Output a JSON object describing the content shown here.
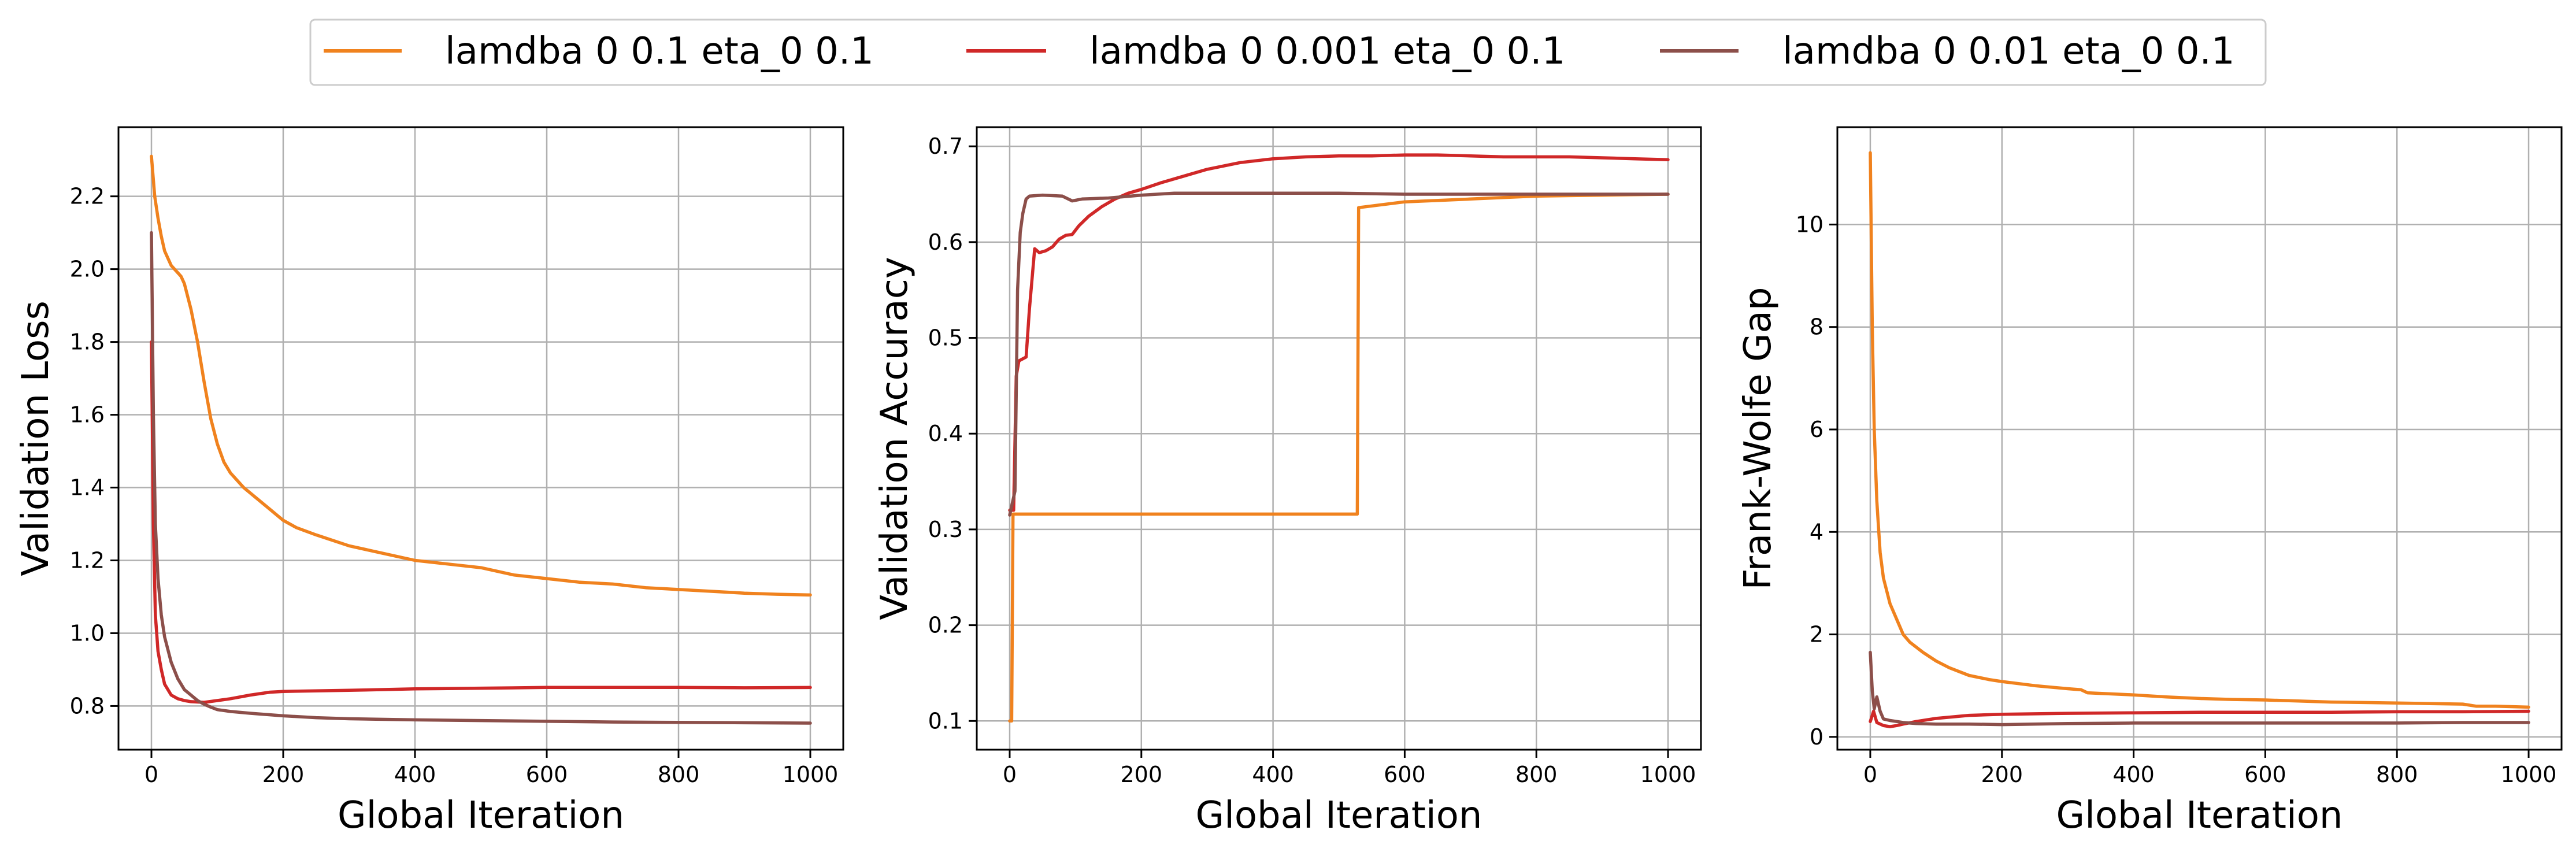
{
  "legend": {
    "placement": "top-center",
    "entries": [
      {
        "label": "lamdba 0 0.1 eta_0 0.1",
        "color": "#f0821e"
      },
      {
        "label": "lamdba 0 0.001 eta_0 0.1",
        "color": "#d02828"
      },
      {
        "label": "lamdba 0 0.01 eta_0 0.1",
        "color": "#8c4f4a"
      }
    ]
  },
  "chart_data": [
    {
      "type": "line",
      "title": "",
      "xlabel": "Global Iteration",
      "ylabel": "Validation Loss",
      "xlim": [
        -50,
        1050
      ],
      "ylim": [
        0.68,
        2.39
      ],
      "xticks": [
        0,
        200,
        400,
        600,
        800,
        1000
      ],
      "yticks": [
        0.8,
        1.0,
        1.2,
        1.4,
        1.6,
        1.8,
        2.0,
        2.2
      ],
      "grid": true,
      "series": [
        {
          "name": "lamdba 0 0.1 eta_0 0.1",
          "color": "#f0821e",
          "points": [
            [
              0,
              2.31
            ],
            [
              5,
              2.2
            ],
            [
              10,
              2.14
            ],
            [
              15,
              2.09
            ],
            [
              20,
              2.05
            ],
            [
              25,
              2.03
            ],
            [
              30,
              2.01
            ],
            [
              35,
              2.0
            ],
            [
              40,
              1.99
            ],
            [
              45,
              1.98
            ],
            [
              50,
              1.96
            ],
            [
              60,
              1.89
            ],
            [
              70,
              1.8
            ],
            [
              80,
              1.69
            ],
            [
              90,
              1.59
            ],
            [
              100,
              1.52
            ],
            [
              110,
              1.47
            ],
            [
              120,
              1.44
            ],
            [
              140,
              1.4
            ],
            [
              160,
              1.37
            ],
            [
              180,
              1.34
            ],
            [
              200,
              1.31
            ],
            [
              220,
              1.29
            ],
            [
              250,
              1.27
            ],
            [
              300,
              1.24
            ],
            [
              350,
              1.22
            ],
            [
              400,
              1.2
            ],
            [
              450,
              1.19
            ],
            [
              500,
              1.18
            ],
            [
              550,
              1.16
            ],
            [
              600,
              1.15
            ],
            [
              650,
              1.14
            ],
            [
              700,
              1.135
            ],
            [
              750,
              1.125
            ],
            [
              800,
              1.12
            ],
            [
              850,
              1.115
            ],
            [
              900,
              1.11
            ],
            [
              950,
              1.107
            ],
            [
              1000,
              1.105
            ]
          ]
        },
        {
          "name": "lamdba 0 0.001 eta_0 0.1",
          "color": "#d02828",
          "points": [
            [
              0,
              1.8
            ],
            [
              3,
              1.3
            ],
            [
              6,
              1.05
            ],
            [
              10,
              0.95
            ],
            [
              15,
              0.9
            ],
            [
              20,
              0.86
            ],
            [
              30,
              0.83
            ],
            [
              40,
              0.82
            ],
            [
              50,
              0.815
            ],
            [
              60,
              0.812
            ],
            [
              80,
              0.81
            ],
            [
              100,
              0.815
            ],
            [
              120,
              0.82
            ],
            [
              150,
              0.83
            ],
            [
              180,
              0.838
            ],
            [
              200,
              0.84
            ],
            [
              300,
              0.843
            ],
            [
              400,
              0.847
            ],
            [
              500,
              0.849
            ],
            [
              600,
              0.851
            ],
            [
              700,
              0.851
            ],
            [
              800,
              0.851
            ],
            [
              900,
              0.85
            ],
            [
              1000,
              0.851
            ]
          ]
        },
        {
          "name": "lamdba 0 0.01 eta_0 0.1",
          "color": "#8c4f4a",
          "points": [
            [
              0,
              2.1
            ],
            [
              3,
              1.6
            ],
            [
              6,
              1.3
            ],
            [
              10,
              1.15
            ],
            [
              15,
              1.05
            ],
            [
              20,
              0.99
            ],
            [
              30,
              0.92
            ],
            [
              40,
              0.875
            ],
            [
              50,
              0.845
            ],
            [
              60,
              0.83
            ],
            [
              70,
              0.815
            ],
            [
              80,
              0.805
            ],
            [
              90,
              0.797
            ],
            [
              100,
              0.79
            ],
            [
              120,
              0.785
            ],
            [
              150,
              0.78
            ],
            [
              200,
              0.773
            ],
            [
              250,
              0.768
            ],
            [
              300,
              0.765
            ],
            [
              400,
              0.762
            ],
            [
              500,
              0.76
            ],
            [
              600,
              0.758
            ],
            [
              700,
              0.756
            ],
            [
              800,
              0.755
            ],
            [
              900,
              0.754
            ],
            [
              1000,
              0.753
            ]
          ]
        }
      ]
    },
    {
      "type": "line",
      "title": "",
      "xlabel": "Global Iteration",
      "ylabel": "Validation Accuracy",
      "xlim": [
        -50,
        1050
      ],
      "ylim": [
        0.07,
        0.72
      ],
      "xticks": [
        0,
        200,
        400,
        600,
        800,
        1000
      ],
      "yticks": [
        0.1,
        0.2,
        0.3,
        0.4,
        0.5,
        0.6,
        0.7
      ],
      "grid": true,
      "series": [
        {
          "name": "lamdba 0 0.1 eta_0 0.1",
          "color": "#f0821e",
          "points": [
            [
              0,
              0.1
            ],
            [
              3,
              0.1
            ],
            [
              5,
              0.316
            ],
            [
              100,
              0.316
            ],
            [
              200,
              0.316
            ],
            [
              300,
              0.316
            ],
            [
              400,
              0.316
            ],
            [
              528,
              0.316
            ],
            [
              530,
              0.636
            ],
            [
              600,
              0.642
            ],
            [
              700,
              0.645
            ],
            [
              800,
              0.648
            ],
            [
              900,
              0.649
            ],
            [
              1000,
              0.65
            ]
          ]
        },
        {
          "name": "lamdba 0 0.001 eta_0 0.1",
          "color": "#d02828",
          "points": [
            [
              0,
              0.32
            ],
            [
              6,
              0.32
            ],
            [
              10,
              0.46
            ],
            [
              14,
              0.476
            ],
            [
              25,
              0.48
            ],
            [
              30,
              0.53
            ],
            [
              38,
              0.593
            ],
            [
              45,
              0.589
            ],
            [
              55,
              0.591
            ],
            [
              65,
              0.595
            ],
            [
              75,
              0.603
            ],
            [
              85,
              0.607
            ],
            [
              95,
              0.608
            ],
            [
              105,
              0.617
            ],
            [
              120,
              0.627
            ],
            [
              140,
              0.637
            ],
            [
              160,
              0.645
            ],
            [
              180,
              0.651
            ],
            [
              200,
              0.655
            ],
            [
              230,
              0.662
            ],
            [
              260,
              0.668
            ],
            [
              300,
              0.676
            ],
            [
              350,
              0.683
            ],
            [
              400,
              0.687
            ],
            [
              450,
              0.689
            ],
            [
              500,
              0.69
            ],
            [
              550,
              0.69
            ],
            [
              600,
              0.691
            ],
            [
              650,
              0.691
            ],
            [
              700,
              0.69
            ],
            [
              750,
              0.689
            ],
            [
              800,
              0.689
            ],
            [
              850,
              0.689
            ],
            [
              900,
              0.688
            ],
            [
              950,
              0.687
            ],
            [
              1000,
              0.686
            ]
          ]
        },
        {
          "name": "lamdba 0 0.01 eta_0 0.1",
          "color": "#8c4f4a",
          "points": [
            [
              0,
              0.315
            ],
            [
              8,
              0.34
            ],
            [
              12,
              0.55
            ],
            [
              16,
              0.61
            ],
            [
              20,
              0.63
            ],
            [
              25,
              0.645
            ],
            [
              30,
              0.648
            ],
            [
              50,
              0.649
            ],
            [
              80,
              0.648
            ],
            [
              95,
              0.643
            ],
            [
              110,
              0.645
            ],
            [
              150,
              0.646
            ],
            [
              200,
              0.649
            ],
            [
              250,
              0.651
            ],
            [
              300,
              0.651
            ],
            [
              400,
              0.651
            ],
            [
              500,
              0.651
            ],
            [
              600,
              0.65
            ],
            [
              700,
              0.65
            ],
            [
              800,
              0.65
            ],
            [
              900,
              0.65
            ],
            [
              1000,
              0.65
            ]
          ]
        }
      ]
    },
    {
      "type": "line",
      "title": "",
      "xlabel": "Global Iteration",
      "ylabel": "Frank-Wolfe Gap",
      "xlim": [
        -50,
        1050
      ],
      "ylim": [
        -0.25,
        11.9
      ],
      "xticks": [
        0,
        200,
        400,
        600,
        800,
        1000
      ],
      "yticks": [
        0,
        2,
        4,
        6,
        8,
        10
      ],
      "grid": true,
      "series": [
        {
          "name": "lamdba 0 0.1 eta_0 0.1",
          "color": "#f0821e",
          "points": [
            [
              0,
              11.4
            ],
            [
              3,
              8.0
            ],
            [
              6,
              6.0
            ],
            [
              10,
              4.6
            ],
            [
              15,
              3.6
            ],
            [
              20,
              3.1
            ],
            [
              30,
              2.6
            ],
            [
              40,
              2.3
            ],
            [
              50,
              2.0
            ],
            [
              60,
              1.85
            ],
            [
              80,
              1.65
            ],
            [
              100,
              1.48
            ],
            [
              120,
              1.35
            ],
            [
              150,
              1.2
            ],
            [
              180,
              1.12
            ],
            [
              200,
              1.08
            ],
            [
              250,
              1.0
            ],
            [
              300,
              0.94
            ],
            [
              320,
              0.92
            ],
            [
              330,
              0.86
            ],
            [
              400,
              0.82
            ],
            [
              450,
              0.78
            ],
            [
              500,
              0.75
            ],
            [
              550,
              0.73
            ],
            [
              600,
              0.72
            ],
            [
              650,
              0.7
            ],
            [
              700,
              0.68
            ],
            [
              750,
              0.67
            ],
            [
              800,
              0.66
            ],
            [
              850,
              0.65
            ],
            [
              900,
              0.64
            ],
            [
              920,
              0.6
            ],
            [
              950,
              0.6
            ],
            [
              1000,
              0.58
            ]
          ]
        },
        {
          "name": "lamdba 0 0.001 eta_0 0.1",
          "color": "#d02828",
          "points": [
            [
              0,
              0.3
            ],
            [
              5,
              0.5
            ],
            [
              10,
              0.28
            ],
            [
              20,
              0.22
            ],
            [
              30,
              0.2
            ],
            [
              40,
              0.22
            ],
            [
              50,
              0.25
            ],
            [
              70,
              0.3
            ],
            [
              100,
              0.36
            ],
            [
              150,
              0.42
            ],
            [
              200,
              0.44
            ],
            [
              300,
              0.46
            ],
            [
              400,
              0.47
            ],
            [
              500,
              0.48
            ],
            [
              600,
              0.48
            ],
            [
              700,
              0.48
            ],
            [
              800,
              0.49
            ],
            [
              900,
              0.49
            ],
            [
              1000,
              0.5
            ]
          ]
        },
        {
          "name": "lamdba 0 0.01 eta_0 0.1",
          "color": "#8c4f4a",
          "points": [
            [
              0,
              1.65
            ],
            [
              3,
              0.9
            ],
            [
              6,
              0.55
            ],
            [
              10,
              0.78
            ],
            [
              15,
              0.5
            ],
            [
              20,
              0.35
            ],
            [
              30,
              0.32
            ],
            [
              40,
              0.3
            ],
            [
              50,
              0.28
            ],
            [
              70,
              0.26
            ],
            [
              100,
              0.25
            ],
            [
              150,
              0.25
            ],
            [
              200,
              0.24
            ],
            [
              300,
              0.26
            ],
            [
              400,
              0.27
            ],
            [
              500,
              0.27
            ],
            [
              600,
              0.27
            ],
            [
              700,
              0.27
            ],
            [
              800,
              0.27
            ],
            [
              900,
              0.28
            ],
            [
              1000,
              0.28
            ]
          ]
        }
      ]
    }
  ]
}
